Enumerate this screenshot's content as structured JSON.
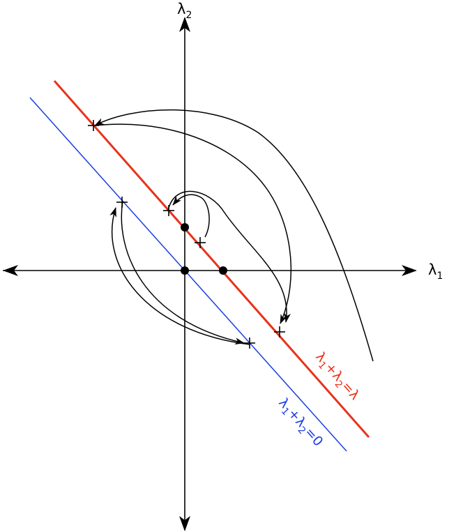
{
  "axes": {
    "x_label": {
      "main": "λ",
      "sub": "1"
    },
    "y_label": {
      "main": "λ",
      "sub": "2"
    }
  },
  "lines": {
    "red": {
      "color": "#e8321a",
      "label": {
        "p1": "λ",
        "s1": "1",
        "op": "+",
        "p2": "λ",
        "s2": "2",
        "rhs": "=λ"
      }
    },
    "blue": {
      "color": "#1a3fe0",
      "label": {
        "p1": "λ",
        "s1": "1",
        "op": "+",
        "p2": "λ",
        "s2": "2",
        "rhs": "=0"
      }
    }
  },
  "colors": {
    "axis": "#000000",
    "flow": "#000000"
  }
}
